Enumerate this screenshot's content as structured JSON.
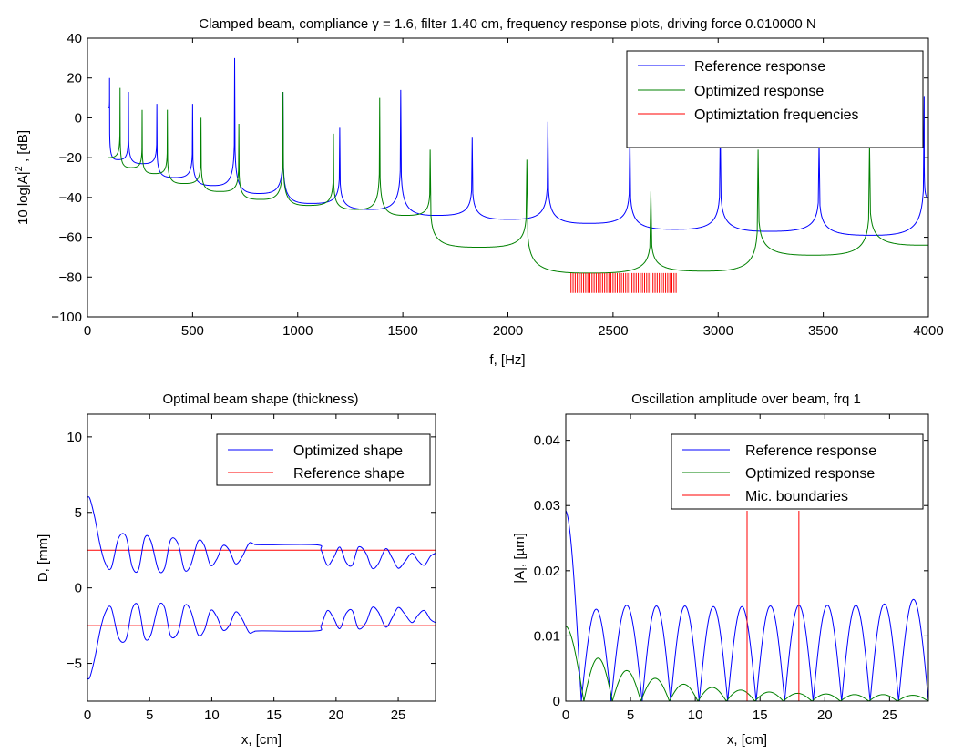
{
  "chart_data": [
    {
      "type": "line",
      "title": "Clamped beam, compliance γ = 1.6, filter 1.40 cm, frequency response plots, driving force 0.010000 N",
      "xlabel": "f, [Hz]",
      "ylabel": "10 log|A|², [dB]",
      "xlim": [
        0,
        4000
      ],
      "ylim": [
        -100,
        40
      ],
      "xticks": [
        "0",
        "500",
        "1000",
        "1500",
        "2000",
        "2500",
        "3000",
        "3500",
        "4000"
      ],
      "yticks": [
        "−100",
        "−80",
        "−60",
        "−40",
        "−20",
        "0",
        "20",
        "40"
      ],
      "legend_position": "top-right",
      "grid": false,
      "colors": {
        "reference": "#0000ff",
        "optimized": "#008000",
        "frequencies": "#ff0000"
      },
      "series": [
        {
          "name": "Reference response",
          "resonances_hz": [
            105,
            195,
            330,
            500,
            700,
            930,
            1200,
            1490,
            1830,
            2190,
            2580,
            3010,
            3480,
            3980
          ],
          "resonance_peaks_db": [
            20,
            13,
            7,
            7,
            30,
            13,
            -5,
            14,
            -10,
            -2,
            -7,
            -5,
            -12,
            11
          ],
          "troughs_hz": [
            145,
            262,
            415,
            600,
            815,
            1065,
            1345,
            1660,
            2010,
            2385,
            2795,
            3245,
            3730
          ],
          "trough_db": [
            -21,
            -23,
            -30,
            -34,
            -38,
            -43,
            -46,
            -49,
            -51,
            -53,
            -56,
            -57,
            -59
          ],
          "end_db": -40
        },
        {
          "name": "Optimized response",
          "resonances_hz": [
            155,
            260,
            380,
            540,
            720,
            930,
            1170,
            1390,
            1630,
            2090,
            2680,
            3190,
            3720
          ],
          "resonance_peaks_db": [
            15,
            4,
            4,
            0,
            -3,
            13,
            -8,
            10,
            -16,
            -21,
            -37,
            -16,
            -13
          ],
          "troughs_hz": [
            207,
            320,
            460,
            630,
            825,
            1050,
            1280,
            1510,
            1860,
            2385,
            2935,
            3455,
            3980
          ],
          "trough_db": [
            -25,
            -28,
            -33,
            -37,
            -41,
            -44,
            -46,
            -49,
            -65,
            -78,
            -77,
            -69,
            -64
          ],
          "start_db": -20,
          "end_db": -64
        },
        {
          "name": "Optimiztation frequencies",
          "range_hz": [
            2300,
            2800
          ],
          "line_count": 51,
          "y_range_db": [
            -88,
            -78
          ]
        }
      ]
    },
    {
      "type": "line",
      "title": "Optimal beam shape (thickness)",
      "xlabel": "x, [cm]",
      "ylabel": "D, [mm]",
      "xlim": [
        0,
        28
      ],
      "ylim": [
        -7.5,
        11.5
      ],
      "xticks": [
        "0",
        "5",
        "10",
        "15",
        "20",
        "25"
      ],
      "yticks": [
        "−5",
        "0",
        "5",
        "10"
      ],
      "legend_position": "top-right",
      "grid": false,
      "colors": {
        "optimized": "#0000ff",
        "reference": "#ff0000"
      },
      "series": [
        {
          "name": "Optimized shape",
          "x": [
            0,
            0.2,
            0.6,
            1.0,
            1.4,
            1.9,
            2.5,
            3.1,
            3.6,
            4.1,
            4.6,
            5.1,
            5.7,
            6.2,
            6.7,
            7.3,
            7.8,
            8.3,
            8.9,
            9.4,
            9.9,
            10.4,
            10.9,
            11.4,
            11.9,
            12.4,
            13.0,
            13.4,
            14.0,
            18.4,
            18.8,
            19.3,
            19.8,
            20.3,
            20.8,
            21.3,
            21.8,
            22.4,
            22.9,
            23.4,
            24.0,
            24.5,
            25.0,
            25.5,
            26.1,
            26.6,
            27.1,
            27.6,
            28.0
          ],
          "y": [
            6.0,
            5.9,
            4.6,
            2.9,
            1.7,
            1.3,
            3.3,
            3.4,
            1.4,
            1.2,
            3.3,
            3.1,
            1.2,
            1.3,
            3.2,
            2.9,
            1.2,
            1.5,
            3.1,
            2.8,
            1.5,
            1.9,
            2.8,
            2.5,
            1.6,
            2.0,
            2.95,
            2.9,
            2.85,
            2.85,
            2.5,
            1.5,
            2.0,
            2.7,
            1.7,
            1.5,
            2.7,
            2.3,
            1.3,
            1.6,
            2.6,
            2.0,
            1.3,
            1.7,
            2.3,
            1.8,
            1.5,
            2.1,
            2.3
          ],
          "symmetric_about_zero": true
        },
        {
          "name": "Reference shape",
          "values_mm": [
            2.5,
            -2.5
          ]
        }
      ]
    },
    {
      "type": "line",
      "title": "Oscillation amplitude over beam, frq 1",
      "xlabel": "x, [cm]",
      "ylabel": "|A|, [µm]",
      "xlim": [
        0,
        28
      ],
      "ylim": [
        0,
        0.044
      ],
      "xticks": [
        "0",
        "5",
        "10",
        "15",
        "20",
        "25"
      ],
      "yticks": [
        "0",
        "0.01",
        "0.02",
        "0.03",
        "0.04"
      ],
      "legend_position": "top-right",
      "grid": false,
      "colors": {
        "reference": "#0000ff",
        "optimized": "#008000",
        "boundaries": "#ff0000"
      },
      "series": [
        {
          "name": "Reference response",
          "zeros_cm": [
            1.2,
            3.5,
            5.9,
            8.1,
            10.3,
            12.5,
            14.7,
            16.9,
            19.1,
            21.3,
            23.5,
            25.7,
            28.0
          ],
          "lobe_peaks": [
            0.0141,
            0.0147,
            0.0146,
            0.0146,
            0.0145,
            0.0145,
            0.0146,
            0.0147,
            0.0147,
            0.0147,
            0.0149,
            0.0156
          ],
          "start_value": 0.0292
        },
        {
          "name": "Optimized response",
          "zeros_cm": [
            1.4,
            3.6,
            5.8,
            8.0,
            10.2,
            12.4,
            14.6,
            16.8,
            19.0,
            21.2,
            23.4,
            25.6,
            28.0
          ],
          "lobe_peaks": [
            0.0066,
            0.0047,
            0.0035,
            0.0026,
            0.0021,
            0.0017,
            0.0014,
            0.0012,
            0.0011,
            0.001,
            0.001,
            0.0009
          ],
          "start_value": 0.0115
        },
        {
          "name": "Mic. boundaries",
          "x_cm": [
            14.0,
            18.0
          ],
          "height": 0.0292
        }
      ]
    }
  ]
}
